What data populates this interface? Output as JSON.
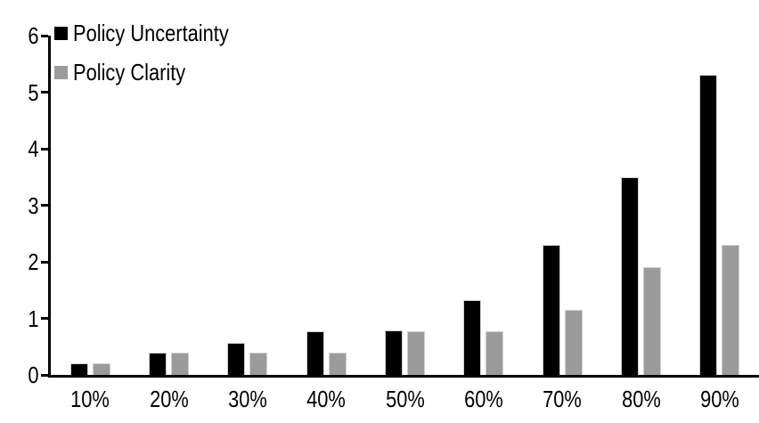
{
  "chart_data": {
    "type": "bar",
    "categories": [
      "10%",
      "20%",
      "30%",
      "40%",
      "50%",
      "60%",
      "70%",
      "80%",
      "90%"
    ],
    "series": [
      {
        "name": "Policy Uncertainty",
        "color": "#000000",
        "values": [
          0.2,
          0.4,
          0.57,
          0.77,
          0.78,
          1.33,
          2.3,
          3.5,
          5.3
        ]
      },
      {
        "name": "Policy Clarity",
        "color": "#9b9b9b",
        "values": [
          0.2,
          0.39,
          0.39,
          0.39,
          0.77,
          0.77,
          1.15,
          1.9,
          2.3
        ]
      }
    ],
    "ylim": [
      0,
      6
    ],
    "yticks": [
      0,
      1,
      2,
      3,
      4,
      5,
      6
    ],
    "grid": false,
    "legend_position": "top-left-inside",
    "background": "#ffffff",
    "axis_color": "#000000",
    "bar_border_color": "#cfcfcf"
  }
}
